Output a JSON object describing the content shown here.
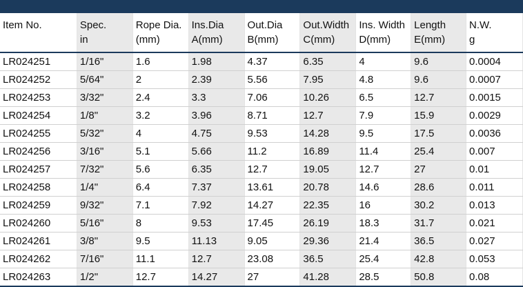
{
  "header": {
    "row1": [
      "Item No.",
      "Spec.",
      "Rope Dia.",
      "Ins.Dia",
      "Out.Dia",
      "Out.Width",
      "Ins. Width",
      "Length",
      "N.W."
    ],
    "row2": [
      "",
      "in",
      "(mm)",
      "A(mm)",
      "B(mm)",
      "C(mm)",
      "D(mm)",
      "E(mm)",
      "g"
    ]
  },
  "rows": [
    [
      "LR024251",
      "1/16\"",
      "1.6",
      "1.98",
      "4.37",
      "6.35",
      "4",
      "9.6",
      "0.0004"
    ],
    [
      "LR024252",
      "5/64\"",
      "2",
      "2.39",
      "5.56",
      "7.95",
      "4.8",
      "9.6",
      "0.0007"
    ],
    [
      "LR024253",
      "3/32\"",
      "2.4",
      "3.3",
      "7.06",
      "10.26",
      "6.5",
      "12.7",
      "0.0015"
    ],
    [
      "LR024254",
      "1/8\"",
      "3.2",
      "3.96",
      "8.71",
      "12.7",
      "7.9",
      "15.9",
      "0.0029"
    ],
    [
      "LR024255",
      "5/32\"",
      "4",
      "4.75",
      "9.53",
      "14.28",
      "9.5",
      "17.5",
      "0.0036"
    ],
    [
      "LR024256",
      "3/16\"",
      "5.1",
      "5.66",
      "11.2",
      "16.89",
      "11.4",
      "25.4",
      "0.007"
    ],
    [
      "LR024257",
      "7/32\"",
      "5.6",
      "6.35",
      "12.7",
      "19.05",
      "12.7",
      "27",
      "0.01"
    ],
    [
      "LR024258",
      "1/4\"",
      "6.4",
      "7.37",
      "13.61",
      "20.78",
      "14.6",
      "28.6",
      "0.011"
    ],
    [
      "LR024259",
      "9/32\"",
      "7.1",
      "7.92",
      "14.27",
      "22.35",
      "16",
      "30.2",
      "0.013"
    ],
    [
      "LR024260",
      "5/16\"",
      "8",
      "9.53",
      "17.45",
      "26.19",
      "18.3",
      "31.7",
      "0.021"
    ],
    [
      "LR024261",
      "3/8\"",
      "9.5",
      "11.13",
      "9.05",
      "29.36",
      "21.4",
      "36.5",
      "0.027"
    ],
    [
      "LR024262",
      "7/16\"",
      "11.1",
      "12.7",
      "23.08",
      "36.5",
      "25.4",
      "42.8",
      "0.053"
    ],
    [
      "LR024263",
      "1/2\"",
      "12.7",
      "14.27",
      "27",
      "41.28",
      "28.5",
      "50.8",
      "0.08"
    ]
  ],
  "colors": {
    "header_bar": "#1b3a5c",
    "shaded_column": "#e9e9e9"
  }
}
